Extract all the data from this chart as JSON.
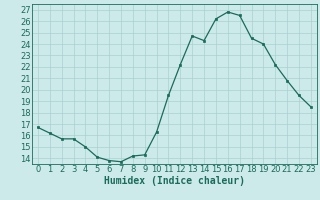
{
  "x": [
    0,
    1,
    2,
    3,
    4,
    5,
    6,
    7,
    8,
    9,
    10,
    11,
    12,
    13,
    14,
    15,
    16,
    17,
    18,
    19,
    20,
    21,
    22,
    23
  ],
  "y": [
    16.7,
    16.2,
    15.7,
    15.7,
    15.0,
    14.1,
    13.8,
    13.7,
    14.2,
    14.3,
    16.3,
    19.5,
    22.2,
    24.7,
    24.3,
    26.2,
    26.8,
    26.5,
    24.5,
    24.0,
    22.2,
    20.8,
    19.5,
    18.5
  ],
  "xlabel": "Humidex (Indice chaleur)",
  "ylabel": "",
  "ylim": [
    13.5,
    27.5
  ],
  "yticks": [
    14,
    15,
    16,
    17,
    18,
    19,
    20,
    21,
    22,
    23,
    24,
    25,
    26,
    27
  ],
  "xticks": [
    0,
    1,
    2,
    3,
    4,
    5,
    6,
    7,
    8,
    9,
    10,
    11,
    12,
    13,
    14,
    15,
    16,
    17,
    18,
    19,
    20,
    21,
    22,
    23
  ],
  "line_color": "#1a6b5a",
  "marker_color": "#1a6b5a",
  "bg_color": "#cdeaea",
  "grid_color": "#aacfcf",
  "text_color": "#1a6b5a",
  "font_size": 6,
  "xlabel_fontsize": 7
}
